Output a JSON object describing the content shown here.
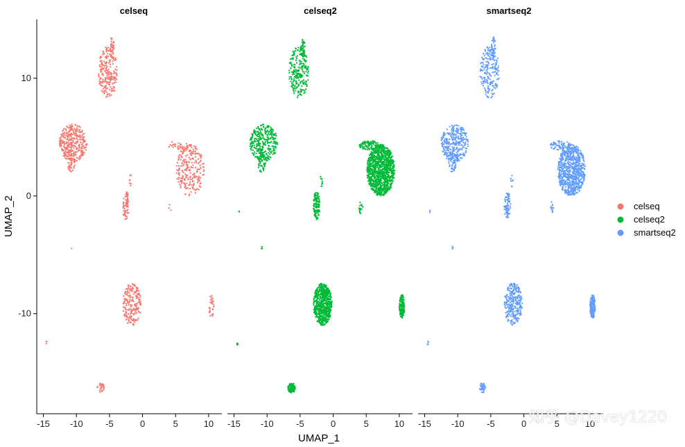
{
  "chart_data": {
    "type": "scatter",
    "xlabel": "UMAP_1",
    "ylabel": "UMAP_2",
    "xlim": [
      -16,
      12
    ],
    "ylim": [
      -18.5,
      15
    ],
    "xticks": [
      -15,
      -10,
      -5,
      0,
      5,
      10
    ],
    "yticks": [
      -10,
      0,
      10
    ],
    "facets": [
      "celseq",
      "celseq2",
      "smartseq2"
    ],
    "legend": {
      "position": "right",
      "entries": [
        {
          "label": "celseq",
          "color": "#F8766D"
        },
        {
          "label": "celseq2",
          "color": "#00BA38"
        },
        {
          "label": "smartseq2",
          "color": "#619CFF"
        }
      ]
    },
    "clusters": [
      {
        "name": "top-elongated",
        "cx": -5.2,
        "cy": 10.5,
        "rx": 1.5,
        "ry": 2.2,
        "counts": [
          220,
          240,
          200
        ]
      },
      {
        "name": "top-spike",
        "cx": -4.6,
        "cy": 12.6,
        "rx": 0.35,
        "ry": 0.9,
        "counts": [
          40,
          40,
          40
        ]
      },
      {
        "name": "left-mass",
        "cx": -10.5,
        "cy": 4.5,
        "rx": 2.1,
        "ry": 1.6,
        "counts": [
          320,
          330,
          320
        ]
      },
      {
        "name": "left-tail",
        "cx": -10.8,
        "cy": 2.9,
        "rx": 0.6,
        "ry": 0.9,
        "counts": [
          50,
          50,
          50
        ]
      },
      {
        "name": "center-small",
        "cx": -2.5,
        "cy": -0.8,
        "rx": 0.5,
        "ry": 1.2,
        "counts": [
          70,
          120,
          80
        ]
      },
      {
        "name": "center-small-top",
        "cx": -1.8,
        "cy": 1.3,
        "rx": 0.2,
        "ry": 0.5,
        "counts": [
          8,
          8,
          8
        ]
      },
      {
        "name": "right-main",
        "cx": 7.2,
        "cy": 2.2,
        "rx": 2.1,
        "ry": 2.2,
        "counts": [
          250,
          1100,
          780
        ]
      },
      {
        "name": "right-main-top",
        "cx": 5.5,
        "cy": 4.3,
        "rx": 1.6,
        "ry": 0.4,
        "counts": [
          30,
          90,
          60
        ]
      },
      {
        "name": "lower-center",
        "cx": -1.6,
        "cy": -9.2,
        "rx": 1.4,
        "ry": 1.8,
        "counts": [
          210,
          650,
          280
        ]
      },
      {
        "name": "lower-right-small",
        "cx": 10.4,
        "cy": -9.4,
        "rx": 0.4,
        "ry": 1.0,
        "counts": [
          35,
          150,
          160
        ]
      },
      {
        "name": "bottom-small",
        "cx": -6.3,
        "cy": -16.3,
        "rx": 0.55,
        "ry": 0.45,
        "counts": [
          25,
          110,
          35
        ]
      },
      {
        "name": "outlier-left",
        "cx": -14.5,
        "cy": -12.5,
        "rx": 0.12,
        "ry": 0.15,
        "counts": [
          3,
          7,
          5
        ]
      },
      {
        "name": "outlier-mid",
        "cx": -10.8,
        "cy": -4.4,
        "rx": 0.12,
        "ry": 0.12,
        "counts": [
          1,
          4,
          3
        ]
      },
      {
        "name": "outlier-right",
        "cx": 4.2,
        "cy": -1.0,
        "rx": 0.3,
        "ry": 0.5,
        "counts": [
          3,
          15,
          12
        ]
      },
      {
        "name": "outlier-center",
        "cx": -14.2,
        "cy": -1.3,
        "rx": 0.1,
        "ry": 0.1,
        "counts": [
          0,
          3,
          3
        ]
      }
    ]
  },
  "watermark": "知乎 @Davey1220"
}
